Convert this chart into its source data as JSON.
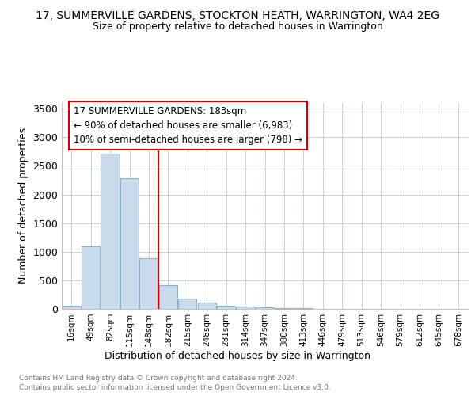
{
  "title": "17, SUMMERVILLE GARDENS, STOCKTON HEATH, WARRINGTON, WA4 2EG",
  "subtitle": "Size of property relative to detached houses in Warrington",
  "xlabel": "Distribution of detached houses by size in Warrington",
  "ylabel": "Number of detached properties",
  "annotation_line": "17 SUMMERVILLE GARDENS: 183sqm\n← 90% of detached houses are smaller (6,983)\n10% of semi-detached houses are larger (798) →",
  "property_sqm": 183,
  "categories": [
    "16sqm",
    "49sqm",
    "82sqm",
    "115sqm",
    "148sqm",
    "182sqm",
    "215sqm",
    "248sqm",
    "281sqm",
    "314sqm",
    "347sqm",
    "380sqm",
    "413sqm",
    "446sqm",
    "479sqm",
    "513sqm",
    "546sqm",
    "579sqm",
    "612sqm",
    "645sqm",
    "678sqm"
  ],
  "values": [
    50,
    1100,
    2720,
    2290,
    880,
    420,
    180,
    110,
    60,
    40,
    25,
    20,
    10,
    5,
    3,
    1,
    0,
    0,
    0,
    0,
    0
  ],
  "bar_color": "#c9daea",
  "bar_edge_color": "#8ab0cc",
  "vline_color": "#cc0000",
  "vline_x": 4.5,
  "ylim": [
    0,
    3600
  ],
  "yticks": [
    0,
    500,
    1000,
    1500,
    2000,
    2500,
    3000,
    3500
  ],
  "background_color": "#ffffff",
  "grid_color": "#c8d0dc",
  "footnote1": "Contains HM Land Registry data © Crown copyright and database right 2024.",
  "footnote2": "Contains public sector information licensed under the Open Government Licence v3.0."
}
